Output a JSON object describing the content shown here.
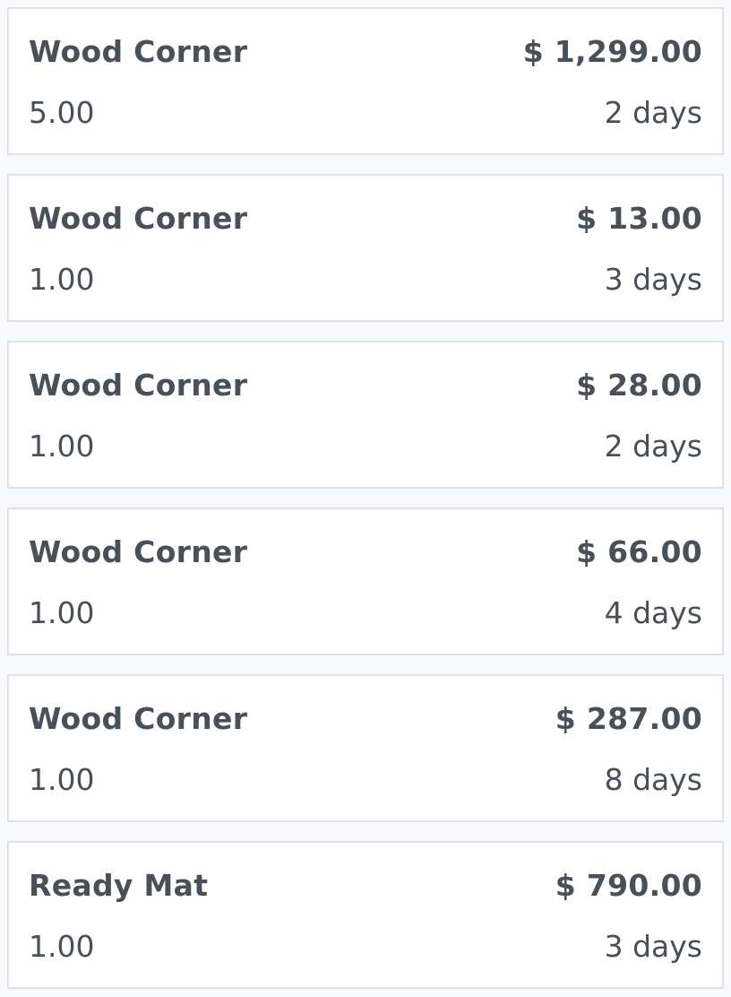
{
  "items": [
    {
      "name": "Wood Corner",
      "price": "$ 1,299.00",
      "quantity": "5.00",
      "duration": "2 days"
    },
    {
      "name": "Wood Corner",
      "price": "$ 13.00",
      "quantity": "1.00",
      "duration": "3 days"
    },
    {
      "name": "Wood Corner",
      "price": "$ 28.00",
      "quantity": "1.00",
      "duration": "2 days"
    },
    {
      "name": "Wood Corner",
      "price": "$ 66.00",
      "quantity": "1.00",
      "duration": "4 days"
    },
    {
      "name": "Wood Corner",
      "price": "$ 287.00",
      "quantity": "1.00",
      "duration": "8 days"
    },
    {
      "name": "Ready Mat",
      "price": "$ 790.00",
      "quantity": "1.00",
      "duration": "3 days"
    }
  ],
  "colors": {
    "text": "#495057",
    "border": "#dee2e6",
    "background": "#f8f9fa"
  }
}
